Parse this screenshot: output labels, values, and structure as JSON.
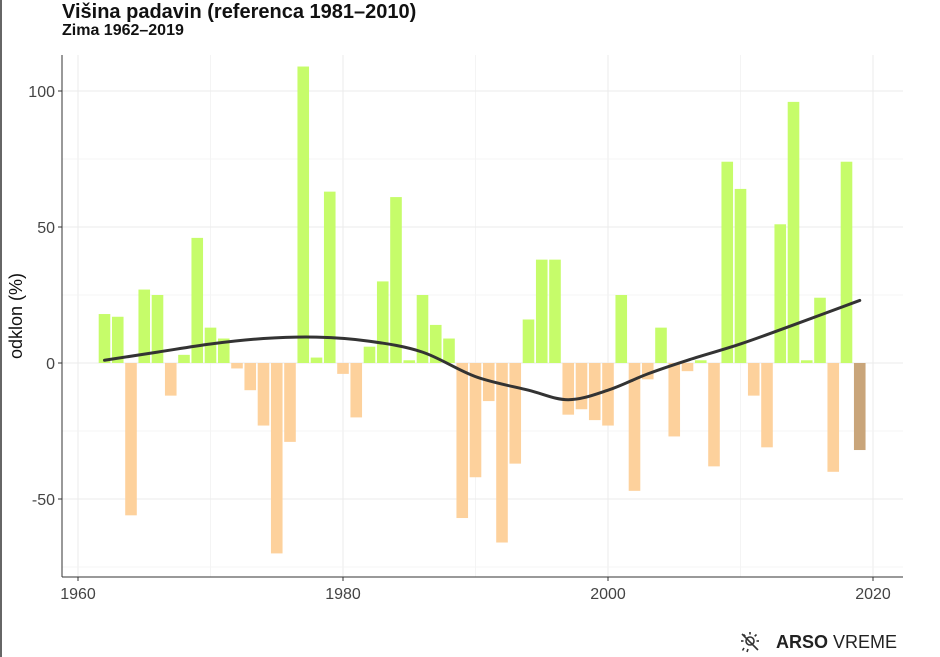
{
  "chart_data": {
    "type": "bar",
    "title": "Višina padavin (referenca 1981–2010)",
    "subtitle": "Zima 1962–2019",
    "xlabel": "",
    "ylabel": "odklon (%)",
    "xlim": [
      1957,
      2023
    ],
    "ylim": [
      -78,
      113
    ],
    "xticks": [
      1960,
      1980,
      2000,
      2020
    ],
    "yticks": [
      -50,
      0,
      50,
      100
    ],
    "grid": true,
    "colors": {
      "positive": "#C6FC6A",
      "negative": "#FDD19C",
      "latest": "#C9A57A",
      "trend": "#333333"
    },
    "x": [
      1962,
      1963,
      1964,
      1965,
      1966,
      1967,
      1968,
      1969,
      1970,
      1971,
      1972,
      1973,
      1974,
      1975,
      1976,
      1977,
      1978,
      1979,
      1980,
      1981,
      1982,
      1983,
      1984,
      1985,
      1986,
      1987,
      1988,
      1989,
      1990,
      1991,
      1992,
      1993,
      1994,
      1995,
      1996,
      1997,
      1998,
      1999,
      2000,
      2001,
      2002,
      2003,
      2004,
      2005,
      2006,
      2007,
      2008,
      2009,
      2010,
      2011,
      2012,
      2013,
      2014,
      2015,
      2016,
      2017,
      2018,
      2019
    ],
    "values": [
      18,
      17,
      -56,
      27,
      25,
      -12,
      3,
      46,
      13,
      9,
      -2,
      -10,
      -23,
      -70,
      -29,
      109,
      2,
      63,
      -4,
      -20,
      6,
      30,
      61,
      1,
      25,
      14,
      9,
      -57,
      -42,
      -14,
      -66,
      -37,
      16,
      38,
      38,
      -19,
      -17,
      -21,
      -23,
      25,
      -47,
      -6,
      13,
      -27,
      -3,
      1,
      -38,
      74,
      64,
      -12,
      -31,
      51,
      96,
      1,
      24,
      -40,
      74,
      -32
    ],
    "trend": {
      "x": [
        1962,
        1966,
        1970,
        1974,
        1978,
        1982,
        1986,
        1990,
        1994,
        1997,
        2000,
        2003,
        2006,
        2010,
        2014,
        2019
      ],
      "values": [
        1,
        4,
        7,
        9,
        9.5,
        8,
        4,
        -5,
        -10,
        -13.5,
        -10,
        -4,
        1,
        7,
        14,
        23
      ]
    }
  },
  "branding": {
    "logo_bold": "ARSO",
    "logo_light": "VREME",
    "icon": "sun-cloud-icon"
  }
}
